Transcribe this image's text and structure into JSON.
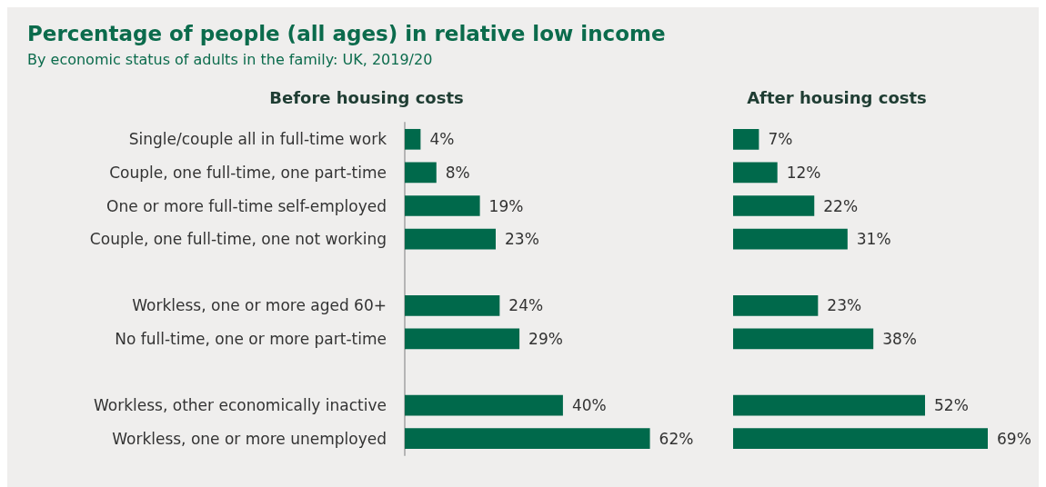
{
  "chart_data": [
    {
      "type": "other",
      "title": "Percentage of people (all ages) in relative low income",
      "subtitle": "By economic status of adults in the family: UK, 2019/20"
    },
    {
      "type": "bar",
      "orientation": "horizontal",
      "title": "Before housing costs",
      "color": "#00694b",
      "categories": [
        "Single/couple all in full-time work",
        "Couple, one full-time, one part-time",
        "One or more full-time self-employed",
        "Couple, one full-time, one not working",
        null,
        "Workless, one or more aged 60+",
        "No full-time, one or more part-time",
        null,
        "Workless, other economically inactive",
        "Workless, one or more unemployed"
      ],
      "values": [
        4,
        8,
        19,
        23,
        null,
        24,
        29,
        null,
        40,
        62
      ],
      "value_labels": [
        "4%",
        "8%",
        "19%",
        "23%",
        null,
        "24%",
        "29%",
        null,
        "40%",
        "62%"
      ]
    },
    {
      "type": "bar",
      "orientation": "horizontal",
      "title": "After housing costs",
      "color": "#00694b",
      "tick_labels": false,
      "categories": [
        null,
        null,
        null,
        null,
        null,
        null,
        null,
        null,
        null,
        null
      ],
      "values": [
        7,
        12,
        22,
        31,
        null,
        23,
        38,
        null,
        52,
        69
      ],
      "value_labels": [
        "7%",
        "12%",
        "22%",
        "31%",
        null,
        "23%",
        "38%",
        null,
        "52%",
        "69%"
      ]
    }
  ]
}
